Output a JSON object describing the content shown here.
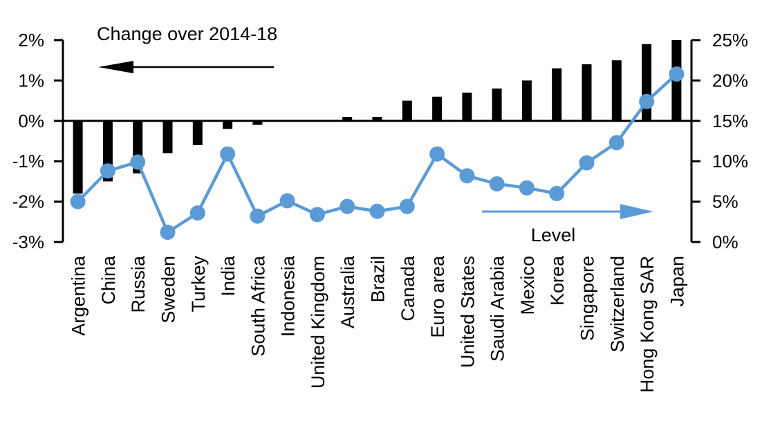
{
  "chart_data": {
    "type": "combo-bar-line",
    "title": "",
    "grid": false,
    "background": "#FFFFFF",
    "categories": [
      "Argentina",
      "China",
      "Russia",
      "Sweden",
      "Turkey",
      "India",
      "South Africa",
      "Indonesia",
      "United Kingdom",
      "Australia",
      "Brazil",
      "Canada",
      "Euro area",
      "United States",
      "Saudi Arabia",
      "Mexico",
      "Korea",
      "Singapore",
      "Switzerland",
      "Hong Kong SAR",
      "Japan"
    ],
    "series": [
      {
        "name": "Change over 2014-18",
        "type": "bar",
        "axis": "left",
        "color": "#000000",
        "values": [
          -1.8,
          -1.5,
          -1.3,
          -0.8,
          -0.6,
          -0.2,
          -0.1,
          0,
          0,
          0.1,
          0.1,
          0.5,
          0.6,
          0.7,
          0.8,
          1.0,
          1.3,
          1.4,
          1.5,
          1.9,
          2.0
        ]
      },
      {
        "name": "Level",
        "type": "line",
        "axis": "right",
        "color": "#5B9BD5",
        "values": [
          5.0,
          8.8,
          9.9,
          1.2,
          3.6,
          10.9,
          3.2,
          5.1,
          3.4,
          4.4,
          3.8,
          4.4,
          10.9,
          8.2,
          7.2,
          6.7,
          6.0,
          9.8,
          12.3,
          17.4,
          20.8
        ]
      }
    ],
    "left_axis": {
      "min": -3,
      "max": 2,
      "tick_values": [
        2,
        1,
        0,
        -1,
        -2,
        -3
      ],
      "tick_labels": [
        "2%",
        "1%",
        "0%",
        "-1%",
        "-2%",
        "-3%"
      ]
    },
    "right_axis": {
      "min": 0,
      "max": 25,
      "tick_values": [
        25,
        20,
        15,
        10,
        5,
        0
      ],
      "tick_labels": [
        "25%",
        "20%",
        "15%",
        "10%",
        "5%",
        "0%"
      ]
    },
    "annotations": {
      "bar_series_label": "Change over 2014-18",
      "bar_arrow_direction": "left",
      "line_series_label": "Level",
      "line_arrow_direction": "right"
    }
  }
}
